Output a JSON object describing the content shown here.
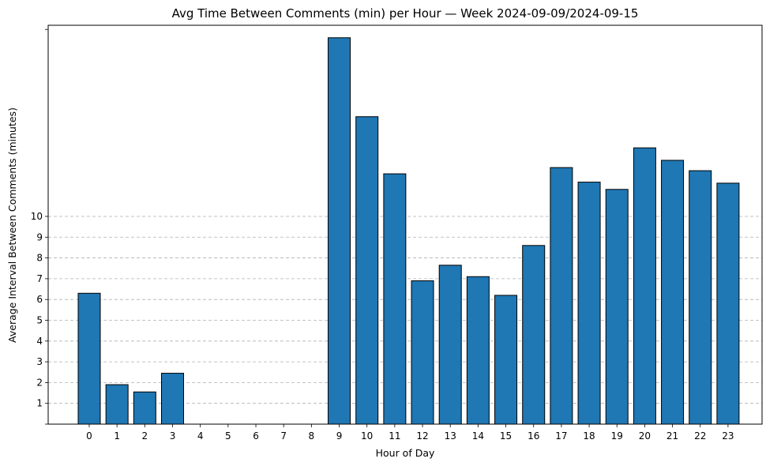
{
  "chart_data": {
    "type": "bar",
    "title": "Avg Time Between Comments (min) per Hour — Week 2024-09-09/2024-09-15",
    "xlabel": "Hour of Day",
    "ylabel": "Average Interval Between Comments (minutes)",
    "categories": [
      "0",
      "1",
      "2",
      "3",
      "4",
      "5",
      "6",
      "7",
      "8",
      "9",
      "10",
      "11",
      "12",
      "13",
      "14",
      "15",
      "16",
      "17",
      "18",
      "19",
      "20",
      "21",
      "22",
      "23"
    ],
    "values": [
      6.3,
      1.9,
      1.55,
      2.45,
      0,
      0,
      0,
      0,
      0,
      18.6,
      14.8,
      12.05,
      6.9,
      7.65,
      7.1,
      6.2,
      8.6,
      12.35,
      11.65,
      11.3,
      13.3,
      12.7,
      12.2,
      11.6
    ],
    "ylim": [
      0,
      19.2
    ],
    "yticks": [
      "",
      "1",
      "2",
      "3",
      "4",
      "5",
      "6",
      "7",
      "8",
      "9",
      "10",
      ""
    ],
    "ytick_values": [
      0,
      1,
      2,
      3,
      4,
      5,
      6,
      7,
      8,
      9,
      10,
      19
    ],
    "grid": "y-dashed",
    "bar_color": "#1f77b4",
    "edge_color": "#000000"
  }
}
